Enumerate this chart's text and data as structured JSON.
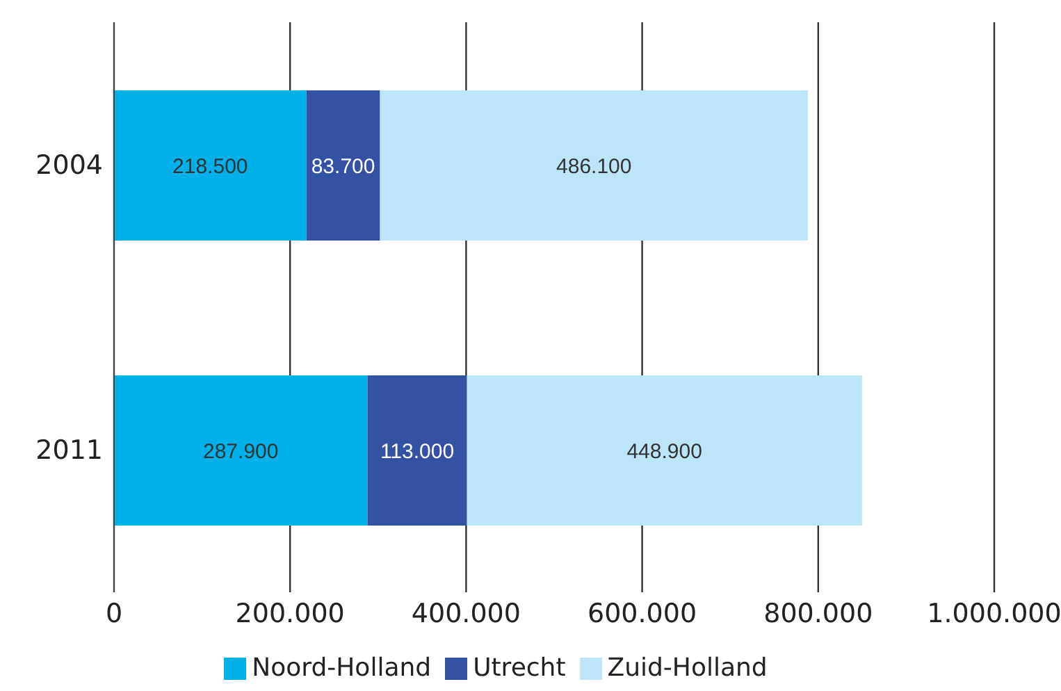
{
  "chart_data": {
    "type": "bar",
    "orientation": "horizontal",
    "stacked": true,
    "categories": [
      "2004",
      "2011"
    ],
    "series": [
      {
        "name": "Noord-Holland",
        "color": "#00b0e8",
        "values": [
          218500,
          287900
        ],
        "value_labels": [
          "218.500",
          "287.900"
        ]
      },
      {
        "name": "Utrecht",
        "color": "#3452a4",
        "values": [
          83700,
          113000
        ],
        "value_labels": [
          "83.700",
          "113.000"
        ]
      },
      {
        "name": "Zuid-Holland",
        "color": "#bde5f8",
        "values": [
          486100,
          448900
        ],
        "value_labels": [
          "486.100",
          "448.900"
        ]
      }
    ],
    "xlim": [
      0,
      1000000
    ],
    "xticks": [
      0,
      {
        "value": 200000,
        "label": "200.000"
      },
      {
        "value": 400000,
        "label": "400.000"
      },
      {
        "value": 600000,
        "label": "600.000"
      },
      {
        "value": 800000,
        "label": "800.000"
      },
      {
        "value": 1000000,
        "label": "1.000.000"
      }
    ],
    "grid": "x",
    "legend": "bottom"
  }
}
